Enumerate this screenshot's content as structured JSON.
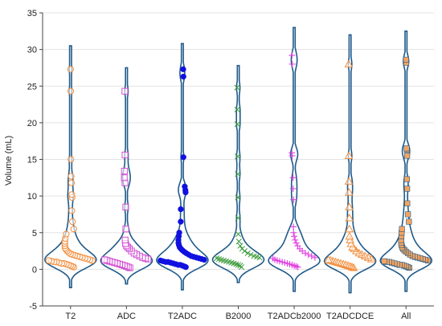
{
  "chart_data": {
    "type": "violin",
    "title": "",
    "xlabel": "",
    "ylabel": "Volume (mL)",
    "ylim": [
      -5,
      35
    ],
    "yticks": [
      -5,
      0,
      5,
      10,
      15,
      20,
      25,
      30,
      35
    ],
    "grid": true,
    "legend": "none",
    "categories": [
      "T2",
      "ADC",
      "T2ADC",
      "B2000",
      "T2ADCb2000",
      "T2ADCDCE",
      "All"
    ],
    "violin_color": "#1f5a8a",
    "series": [
      {
        "category": "T2",
        "marker": "circle",
        "color": "#f28c3a",
        "fill": "none",
        "extent": [
          -2.5,
          30.5
        ],
        "values": [
          0.3,
          0.4,
          0.5,
          0.6,
          0.7,
          0.8,
          0.8,
          0.9,
          1.0,
          1.0,
          1.1,
          1.2,
          1.2,
          1.3,
          1.4,
          1.5,
          1.6,
          1.7,
          1.8,
          1.9,
          2.0,
          2.1,
          2.3,
          2.5,
          2.7,
          2.9,
          3.2,
          3.5,
          3.8,
          4.2,
          4.8,
          5.5,
          6.5,
          8.0,
          9.8,
          10.2,
          11.8,
          12.7,
          15.0,
          24.3,
          27.3
        ]
      },
      {
        "category": "ADC",
        "marker": "square",
        "color": "#d24fd2",
        "fill": "none",
        "extent": [
          -2.0,
          27.5
        ],
        "values": [
          0.2,
          0.3,
          0.4,
          0.5,
          0.6,
          0.7,
          0.8,
          0.9,
          1.0,
          1.1,
          1.2,
          1.3,
          1.4,
          1.5,
          1.6,
          1.8,
          2.0,
          2.2,
          2.5,
          2.8,
          3.0,
          3.2,
          3.5,
          4.0,
          5.5,
          8.5,
          11.8,
          12.5,
          13.4,
          15.6,
          24.3
        ]
      },
      {
        "category": "T2ADC",
        "marker": "filled-circle",
        "color": "#1010e0",
        "fill": "#1010e0",
        "extent": [
          -2.8,
          30.8
        ],
        "values": [
          0.3,
          0.4,
          0.5,
          0.6,
          0.6,
          0.7,
          0.8,
          0.9,
          1.0,
          1.0,
          1.1,
          1.2,
          1.3,
          1.4,
          1.5,
          1.6,
          1.7,
          1.8,
          2.0,
          2.2,
          2.4,
          2.6,
          2.8,
          3.0,
          3.3,
          3.6,
          4.0,
          4.5,
          5.0,
          6.5,
          8.2,
          10.5,
          10.8,
          11.3,
          15.3,
          26.3,
          27.3
        ]
      },
      {
        "category": "B2000",
        "marker": "x",
        "color": "#3a9a3a",
        "fill": "none",
        "extent": [
          -1.8,
          27.8
        ],
        "values": [
          0.3,
          0.5,
          0.6,
          0.7,
          0.8,
          0.9,
          1.0,
          1.1,
          1.2,
          1.3,
          1.4,
          1.5,
          1.6,
          1.7,
          1.8,
          2.0,
          2.2,
          2.5,
          2.8,
          3.2,
          3.8,
          4.8,
          7.0,
          9.8,
          13.0,
          15.4,
          19.8,
          21.8,
          24.8
        ]
      },
      {
        "category": "T2ADCb2000",
        "marker": "plus",
        "color": "#e040e0",
        "fill": "none",
        "extent": [
          -3.0,
          33.0
        ],
        "values": [
          0.3,
          0.4,
          0.5,
          0.6,
          0.7,
          0.8,
          0.9,
          1.0,
          1.1,
          1.2,
          1.3,
          1.5,
          1.6,
          1.8,
          2.0,
          2.2,
          2.5,
          2.8,
          3.2,
          3.6,
          4.0,
          4.5,
          5.0,
          5.8,
          9.5,
          11.0,
          12.5,
          15.5,
          15.9,
          28.0,
          29.2
        ]
      },
      {
        "category": "T2ADCDCE",
        "marker": "triangle",
        "color": "#f28c3a",
        "fill": "none",
        "extent": [
          -3.2,
          32.0
        ],
        "values": [
          0.2,
          0.3,
          0.4,
          0.5,
          0.6,
          0.7,
          0.8,
          0.9,
          1.0,
          1.1,
          1.2,
          1.3,
          1.4,
          1.6,
          1.8,
          2.0,
          2.2,
          2.5,
          2.8,
          3.0,
          3.5,
          4.0,
          4.5,
          5.5,
          7.0,
          8.5,
          10.5,
          12.0,
          15.5,
          28.0
        ]
      },
      {
        "category": "All",
        "marker": "filled-square",
        "color": "#1f5a8a",
        "fill": "#f4a460",
        "extent": [
          -3.0,
          32.5
        ],
        "values": [
          0.2,
          0.3,
          0.4,
          0.5,
          0.6,
          0.6,
          0.7,
          0.8,
          0.9,
          1.0,
          1.0,
          1.1,
          1.2,
          1.3,
          1.4,
          1.5,
          1.6,
          1.7,
          1.8,
          2.0,
          2.2,
          2.4,
          2.6,
          2.8,
          3.0,
          3.3,
          3.6,
          4.0,
          4.5,
          5.0,
          5.5,
          6.5,
          7.5,
          9.0,
          11.0,
          12.3,
          15.5,
          16.3,
          16.5,
          28.2,
          28.6
        ]
      }
    ]
  }
}
